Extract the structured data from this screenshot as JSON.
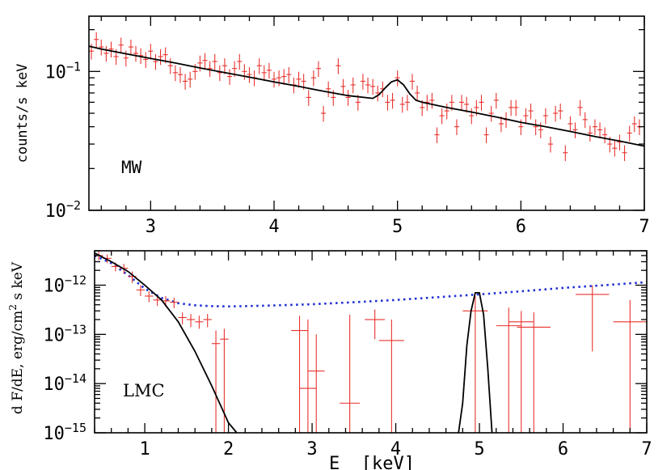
{
  "chart_data": [
    {
      "type": "scatter",
      "panel": "top",
      "annotation": "MW",
      "ylabel": "counts/s keV",
      "xlabel": "",
      "xlim": [
        2.5,
        7.0
      ],
      "ylim": [
        0.01,
        0.25
      ],
      "yscale": "log",
      "x_ticks": [
        3,
        4,
        5,
        6,
        7
      ],
      "x_tick_labels": [
        "3",
        "4",
        "5",
        "6",
        "7"
      ],
      "y_ticks": [
        {
          "value": 0.1,
          "base": "10",
          "exp": "−1"
        },
        {
          "value": 0.01,
          "base": "10",
          "exp": "−2"
        }
      ],
      "data_color": "#e8332e",
      "model_color": "#000000",
      "data": {
        "x": [
          2.52,
          2.56,
          2.6,
          2.64,
          2.68,
          2.72,
          2.76,
          2.8,
          2.84,
          2.88,
          2.92,
          2.96,
          3.0,
          3.04,
          3.08,
          3.12,
          3.16,
          3.2,
          3.24,
          3.28,
          3.32,
          3.36,
          3.4,
          3.44,
          3.48,
          3.52,
          3.56,
          3.6,
          3.64,
          3.68,
          3.72,
          3.76,
          3.8,
          3.84,
          3.88,
          3.92,
          3.96,
          4.0,
          4.04,
          4.08,
          4.12,
          4.16,
          4.2,
          4.24,
          4.28,
          4.32,
          4.36,
          4.4,
          4.44,
          4.48,
          4.52,
          4.56,
          4.6,
          4.64,
          4.68,
          4.72,
          4.76,
          4.8,
          4.84,
          4.88,
          4.92,
          4.96,
          5.0,
          5.04,
          5.08,
          5.12,
          5.16,
          5.2,
          5.24,
          5.28,
          5.32,
          5.36,
          5.4,
          5.44,
          5.48,
          5.52,
          5.56,
          5.6,
          5.64,
          5.68,
          5.72,
          5.76,
          5.8,
          5.84,
          5.88,
          5.92,
          5.96,
          6.0,
          6.04,
          6.08,
          6.12,
          6.16,
          6.2,
          6.24,
          6.28,
          6.32,
          6.36,
          6.4,
          6.44,
          6.48,
          6.52,
          6.56,
          6.6,
          6.64,
          6.68,
          6.72,
          6.76,
          6.8,
          6.84,
          6.88,
          6.92,
          6.96
        ],
        "y": [
          0.14,
          0.17,
          0.15,
          0.135,
          0.145,
          0.128,
          0.155,
          0.125,
          0.15,
          0.135,
          0.13,
          0.122,
          0.14,
          0.118,
          0.128,
          0.132,
          0.11,
          0.098,
          0.095,
          0.085,
          0.088,
          0.1,
          0.115,
          0.12,
          0.105,
          0.118,
          0.098,
          0.11,
          0.092,
          0.105,
          0.118,
          0.1,
          0.095,
          0.09,
          0.11,
          0.098,
          0.102,
          0.088,
          0.09,
          0.092,
          0.095,
          0.08,
          0.088,
          0.085,
          0.065,
          0.09,
          0.105,
          0.05,
          0.075,
          0.065,
          0.11,
          0.078,
          0.065,
          0.08,
          0.06,
          0.085,
          0.08,
          0.078,
          0.07,
          0.075,
          0.06,
          0.062,
          0.09,
          0.058,
          0.06,
          0.085,
          0.07,
          0.055,
          0.06,
          0.062,
          0.035,
          0.048,
          0.052,
          0.06,
          0.04,
          0.06,
          0.058,
          0.048,
          0.055,
          0.06,
          0.035,
          0.05,
          0.062,
          0.042,
          0.045,
          0.055,
          0.055,
          0.04,
          0.048,
          0.052,
          0.04,
          0.038,
          0.048,
          0.03,
          0.05,
          0.052,
          0.026,
          0.042,
          0.038,
          0.055,
          0.045,
          0.036,
          0.04,
          0.038,
          0.035,
          0.03,
          0.028,
          0.031,
          0.026,
          0.036,
          0.042,
          0.04
        ],
        "yerr_rel": 0.13
      },
      "model": {
        "x": [
          2.5,
          2.6,
          2.8,
          3.0,
          3.2,
          3.4,
          3.6,
          3.8,
          4.0,
          4.2,
          4.4,
          4.6,
          4.8,
          4.85,
          4.9,
          4.95,
          5.0,
          5.05,
          5.1,
          5.15,
          5.2,
          5.4,
          5.6,
          5.8,
          6.0,
          6.2,
          6.4,
          6.6,
          6.8,
          7.0
        ],
        "y": [
          0.152,
          0.145,
          0.134,
          0.124,
          0.115,
          0.106,
          0.098,
          0.091,
          0.084,
          0.078,
          0.072,
          0.067,
          0.064,
          0.068,
          0.076,
          0.084,
          0.087,
          0.08,
          0.069,
          0.062,
          0.06,
          0.055,
          0.051,
          0.047,
          0.043,
          0.04,
          0.037,
          0.034,
          0.0315,
          0.029
        ]
      }
    },
    {
      "type": "scatter",
      "panel": "bottom",
      "annotation": "LMC",
      "ylabel_parts": [
        "d F/dE, erg/cm",
        "2",
        " s keV"
      ],
      "xlabel": "E  [keV]",
      "xlim": [
        0.4,
        7.0
      ],
      "ylim": [
        1e-15,
        5e-12
      ],
      "yscale": "log",
      "x_ticks": [
        1,
        2,
        3,
        4,
        5,
        6,
        7
      ],
      "x_tick_labels": [
        "1",
        "2",
        "3",
        "4",
        "5",
        "6",
        "7"
      ],
      "y_ticks": [
        {
          "value": 1e-12,
          "base": "10",
          "exp": "−12"
        },
        {
          "value": 1e-13,
          "base": "10",
          "exp": "−13"
        },
        {
          "value": 1e-14,
          "base": "10",
          "exp": "−14"
        },
        {
          "value": 1e-15,
          "base": "10",
          "exp": "−15"
        }
      ],
      "data_color": "#e8332e",
      "model_color": "#000000",
      "background_color": "#1f2fd6",
      "data": [
        {
          "x": 0.45,
          "xerr": 0.05,
          "y": 4e-12,
          "ylo": 3.2e-12,
          "yhi": 4.8e-12
        },
        {
          "x": 0.55,
          "xerr": 0.05,
          "y": 3.5e-12,
          "ylo": 2.8e-12,
          "yhi": 4.2e-12
        },
        {
          "x": 0.65,
          "xerr": 0.05,
          "y": 2.4e-12,
          "ylo": 1.9e-12,
          "yhi": 2.9e-12
        },
        {
          "x": 0.75,
          "xerr": 0.05,
          "y": 2.2e-12,
          "ylo": 1.7e-12,
          "yhi": 2.7e-12
        },
        {
          "x": 0.85,
          "xerr": 0.05,
          "y": 1.5e-12,
          "ylo": 1.1e-12,
          "yhi": 1.9e-12
        },
        {
          "x": 0.95,
          "xerr": 0.05,
          "y": 8e-13,
          "ylo": 6e-13,
          "yhi": 1e-12
        },
        {
          "x": 1.05,
          "xerr": 0.05,
          "y": 6e-13,
          "ylo": 4.5e-13,
          "yhi": 7.5e-13
        },
        {
          "x": 1.15,
          "xerr": 0.05,
          "y": 5e-13,
          "ylo": 3.8e-13,
          "yhi": 6.2e-13
        },
        {
          "x": 1.25,
          "xerr": 0.05,
          "y": 4.8e-13,
          "ylo": 3.6e-13,
          "yhi": 6e-13
        },
        {
          "x": 1.35,
          "xerr": 0.05,
          "y": 4.5e-13,
          "ylo": 3.4e-13,
          "yhi": 5.6e-13
        },
        {
          "x": 1.45,
          "xerr": 0.05,
          "y": 2.2e-13,
          "ylo": 1.6e-13,
          "yhi": 2.8e-13
        },
        {
          "x": 1.55,
          "xerr": 0.05,
          "y": 2e-13,
          "ylo": 1.4e-13,
          "yhi": 2.6e-13
        },
        {
          "x": 1.65,
          "xerr": 0.05,
          "y": 1.8e-13,
          "ylo": 1.3e-13,
          "yhi": 2.4e-13
        },
        {
          "x": 1.75,
          "xerr": 0.05,
          "y": 2e-13,
          "ylo": 1.4e-13,
          "yhi": 2.6e-13
        },
        {
          "x": 1.85,
          "xerr": 0.05,
          "y": 6.5e-14,
          "ylo": 1e-15,
          "yhi": 1.2e-13
        },
        {
          "x": 1.95,
          "xerr": 0.05,
          "y": 8e-14,
          "ylo": 1e-15,
          "yhi": 1.3e-13
        },
        {
          "x": 2.85,
          "xerr": 0.1,
          "y": 1.2e-13,
          "ylo": 1e-15,
          "yhi": 2.4e-13
        },
        {
          "x": 2.95,
          "xerr": 0.1,
          "y": 8e-15,
          "ylo": 1e-15,
          "yhi": 2e-13
        },
        {
          "x": 3.05,
          "xerr": 0.1,
          "y": 1.8e-14,
          "ylo": 1e-15,
          "yhi": 1e-13
        },
        {
          "x": 3.45,
          "xerr": 0.12,
          "y": 4e-15,
          "ylo": 1e-15,
          "yhi": 2.5e-13
        },
        {
          "x": 3.75,
          "xerr": 0.12,
          "y": 2e-13,
          "ylo": 8e-14,
          "yhi": 3.2e-13
        },
        {
          "x": 3.95,
          "xerr": 0.15,
          "y": 7.5e-14,
          "ylo": 1e-15,
          "yhi": 2e-13
        },
        {
          "x": 4.95,
          "xerr": 0.15,
          "y": 3e-13,
          "ylo": 1e-15,
          "yhi": 6e-13
        },
        {
          "x": 5.35,
          "xerr": 0.15,
          "y": 1.5e-13,
          "ylo": 1e-15,
          "yhi": 3.5e-13
        },
        {
          "x": 5.5,
          "xerr": 0.15,
          "y": 1.8e-13,
          "ylo": 1e-15,
          "yhi": 3e-13
        },
        {
          "x": 5.65,
          "xerr": 0.2,
          "y": 1.4e-13,
          "ylo": 1e-15,
          "yhi": 2.8e-13
        },
        {
          "x": 6.35,
          "xerr": 0.2,
          "y": 6.5e-13,
          "ylo": 4.5e-14,
          "yhi": 1e-12
        },
        {
          "x": 6.8,
          "xerr": 0.2,
          "y": 1.8e-13,
          "ylo": 1e-15,
          "yhi": 5e-13
        }
      ],
      "model": {
        "x": [
          0.4,
          0.6,
          0.8,
          1.0,
          1.2,
          1.4,
          1.6,
          1.8,
          2.0,
          2.1,
          4.75,
          4.8,
          4.85,
          4.9,
          4.95,
          5.0,
          5.05,
          5.1,
          5.15
        ],
        "y": [
          4.5e-12,
          3e-12,
          1.9e-12,
          1e-12,
          5e-13,
          1.8e-13,
          4.5e-14,
          9e-15,
          1.6e-15,
          1e-15,
          1e-15,
          4e-15,
          6e-14,
          3e-13,
          7e-13,
          7e-13,
          2.5e-13,
          2e-14,
          1e-15
        ]
      },
      "background": {
        "x": [
          0.4,
          0.6,
          0.8,
          1.0,
          1.2,
          1.4,
          1.6,
          1.8,
          2.0,
          2.2,
          2.5,
          3.0,
          3.5,
          4.0,
          4.5,
          5.0,
          5.5,
          6.0,
          6.5,
          7.0
        ],
        "y": [
          4e-12,
          2.8e-12,
          1.6e-12,
          8.5e-13,
          5.5e-13,
          4.3e-13,
          3.9e-13,
          3.75e-13,
          3.7e-13,
          3.75e-13,
          3.85e-13,
          4.1e-13,
          4.5e-13,
          5e-13,
          5.7e-13,
          6.5e-13,
          7.5e-13,
          8.8e-13,
          1e-12,
          1.15e-12
        ]
      }
    }
  ]
}
